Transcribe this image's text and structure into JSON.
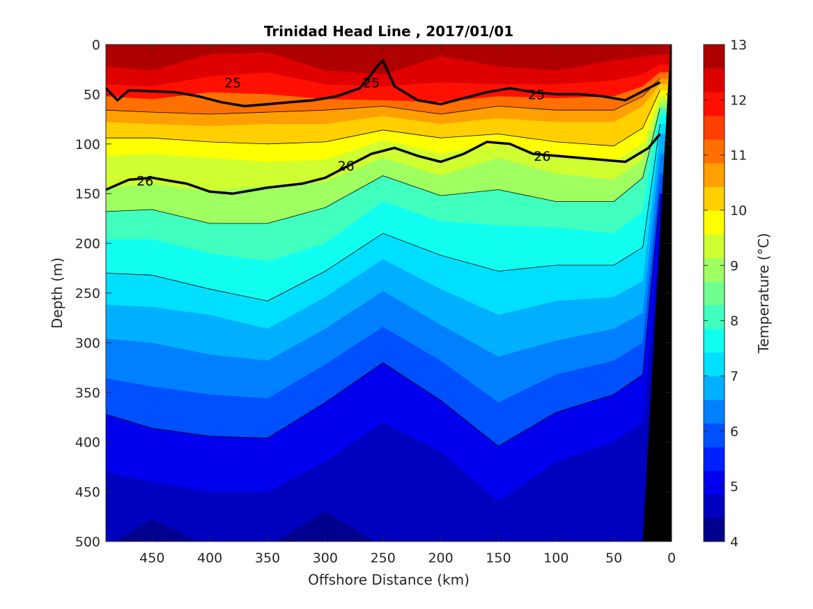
{
  "chart_data": {
    "type": "heatmap",
    "title": "Trinidad Head Line , 2017/01/01",
    "xlabel": "Offshore Distance (km)",
    "ylabel": "Depth (m)",
    "xlim": [
      490,
      0
    ],
    "ylim": [
      0,
      500
    ],
    "x_ticks": [
      "450",
      "400",
      "350",
      "300",
      "250",
      "200",
      "150",
      "100",
      "50",
      "0"
    ],
    "x_tick_values": [
      450,
      400,
      350,
      300,
      250,
      200,
      150,
      100,
      50,
      0
    ],
    "y_ticks": [
      "0",
      "50",
      "100",
      "150",
      "200",
      "250",
      "300",
      "350",
      "400",
      "450",
      "500"
    ],
    "y_tick_values": [
      0,
      50,
      100,
      150,
      200,
      250,
      300,
      350,
      400,
      450,
      500
    ],
    "colorbar": {
      "label": "Temperature (°C)",
      "ticks": [
        "4",
        "5",
        "6",
        "7",
        "8",
        "9",
        "10",
        "11",
        "12",
        "13"
      ],
      "tick_values": [
        4,
        5,
        6,
        7,
        8,
        9,
        10,
        11,
        12,
        13
      ],
      "colors": [
        "#00008f",
        "#0000bf",
        "#0000ef",
        "#0020ff",
        "#0050ff",
        "#0080ff",
        "#00b0ff",
        "#00dfff",
        "#10ffef",
        "#40ffbf",
        "#70ff8f",
        "#9fff60",
        "#cfff30",
        "#ffff00",
        "#ffcf00",
        "#ff9f00",
        "#ff7000",
        "#ff4000",
        "#ff1000",
        "#df0000",
        "#af0000"
      ]
    },
    "isotherm_depths": {
      "x": [
        490,
        450,
        400,
        350,
        300,
        250,
        200,
        150,
        100,
        50,
        25,
        10
      ],
      "levels": [
        {
          "t": 12.5,
          "depth": [
            22,
            26,
            10,
            8,
            26,
            30,
            12,
            22,
            26,
            16,
            12,
            10
          ]
        },
        {
          "t": 12.0,
          "depth": [
            40,
            42,
            32,
            28,
            40,
            42,
            38,
            40,
            40,
            36,
            30,
            20
          ]
        },
        {
          "t": 11.5,
          "depth": [
            52,
            55,
            48,
            50,
            55,
            56,
            58,
            52,
            54,
            52,
            42,
            28
          ]
        },
        {
          "t": 11.0,
          "depth": [
            66,
            68,
            70,
            68,
            66,
            62,
            70,
            62,
            66,
            66,
            52,
            34
          ]
        },
        {
          "t": 10.5,
          "depth": [
            78,
            80,
            82,
            80,
            80,
            72,
            80,
            74,
            78,
            78,
            62,
            40
          ]
        },
        {
          "t": 10.0,
          "depth": [
            94,
            94,
            98,
            100,
            98,
            86,
            94,
            90,
            98,
            102,
            84,
            46
          ]
        },
        {
          "t": 9.5,
          "depth": [
            112,
            110,
            114,
            118,
            116,
            96,
            110,
            100,
            112,
            118,
            100,
            52
          ]
        },
        {
          "t": 9.0,
          "depth": [
            144,
            140,
            148,
            142,
            138,
            114,
            132,
            114,
            130,
            136,
            116,
            58
          ]
        },
        {
          "t": 8.5,
          "depth": [
            168,
            166,
            180,
            180,
            164,
            132,
            152,
            146,
            158,
            158,
            134,
            64
          ]
        },
        {
          "t": 8.0,
          "depth": [
            196,
            196,
            210,
            218,
            200,
            158,
            178,
            182,
            184,
            190,
            168,
            70
          ]
        },
        {
          "t": 7.5,
          "depth": [
            230,
            232,
            246,
            258,
            228,
            190,
            212,
            228,
            222,
            222,
            204,
            80
          ]
        },
        {
          "t": 7.0,
          "depth": [
            262,
            264,
            272,
            286,
            254,
            216,
            246,
            272,
            258,
            254,
            238,
            90
          ]
        },
        {
          "t": 6.5,
          "depth": [
            296,
            300,
            312,
            318,
            286,
            248,
            282,
            314,
            298,
            286,
            270,
            110
          ]
        },
        {
          "t": 6.0,
          "depth": [
            336,
            344,
            352,
            356,
            322,
            284,
            318,
            360,
            332,
            318,
            300,
            130
          ]
        },
        {
          "t": 5.5,
          "depth": [
            372,
            386,
            394,
            396,
            360,
            320,
            358,
            404,
            370,
            352,
            332,
            150
          ]
        },
        {
          "t": 5.0,
          "depth": [
            430,
            440,
            450,
            450,
            420,
            380,
            410,
            460,
            420,
            400,
            380,
            200
          ]
        },
        {
          "t": 4.5,
          "depth": [
            505,
            478,
            505,
            505,
            470,
            505,
            505,
            505,
            500,
            505,
            505,
            300
          ]
        }
      ]
    },
    "density_contours": [
      {
        "label": "25",
        "x": [
          490,
          480,
          470,
          430,
          410,
          390,
          370,
          350,
          330,
          310,
          290,
          270,
          260,
          255,
          250,
          240,
          220,
          200,
          180,
          160,
          140,
          120,
          100,
          80,
          60,
          40,
          20,
          10
        ],
        "depth": [
          44,
          56,
          46,
          48,
          52,
          58,
          62,
          60,
          58,
          56,
          52,
          44,
          30,
          22,
          16,
          42,
          56,
          60,
          54,
          48,
          44,
          48,
          50,
          50,
          52,
          56,
          44,
          38
        ]
      },
      {
        "label": "26",
        "x": [
          490,
          470,
          450,
          420,
          400,
          380,
          350,
          320,
          300,
          280,
          260,
          240,
          220,
          200,
          180,
          160,
          140,
          120,
          100,
          80,
          60,
          40,
          20,
          10
        ],
        "depth": [
          146,
          136,
          134,
          140,
          148,
          150,
          144,
          140,
          134,
          122,
          110,
          104,
          112,
          118,
          110,
          98,
          100,
          110,
          112,
          114,
          116,
          118,
          104,
          90
        ]
      }
    ],
    "contour_labels": [
      {
        "text": "25",
        "x": 380,
        "depth": 38
      },
      {
        "text": "25",
        "x": 260,
        "depth": 38
      },
      {
        "text": "25",
        "x": 117,
        "depth": 50
      },
      {
        "text": "26",
        "x": 456,
        "depth": 137
      },
      {
        "text": "26",
        "x": 282,
        "depth": 122
      },
      {
        "text": "26",
        "x": 112,
        "depth": 112
      }
    ],
    "seafloor": {
      "color": "#000000",
      "x_at_surface": 1,
      "x_at_bottom": 25
    }
  }
}
